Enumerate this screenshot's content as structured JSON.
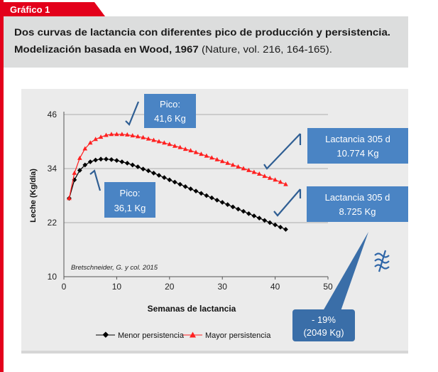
{
  "header": {
    "badge": "Gráfico 1",
    "title_line1": "Dos curvas de lactancia con diferentes pico de producción y persistencia.",
    "title_line2_bold": "Modelización basada en Wood, 1967",
    "title_line2_rest": " (Nature, vol. 216, 164-165)."
  },
  "colors": {
    "brand_red": "#e3001b",
    "header_bg": "#dcdddd",
    "callout_blue": "#4a84c4",
    "series_black": "#000000",
    "series_red": "#ff2020"
  },
  "icons": [
    "not-equal-approx-icon"
  ],
  "chart_data": {
    "type": "line",
    "xlabel": "Semanas de lactancia",
    "ylabel": "Leche (Kg/día)",
    "xlim": [
      0,
      50
    ],
    "ylim": [
      10,
      46
    ],
    "xticks": [
      0,
      10,
      20,
      30,
      40,
      50
    ],
    "yticks": [
      10,
      22,
      34,
      46
    ],
    "grid": "horizontal",
    "legend_position": "bottom",
    "source_note": "Bretschneider, G. y col. 2015",
    "x": [
      1,
      2,
      3,
      4,
      5,
      6,
      7,
      8,
      9,
      10,
      11,
      12,
      13,
      14,
      15,
      16,
      17,
      18,
      19,
      20,
      21,
      22,
      23,
      24,
      25,
      26,
      27,
      28,
      29,
      30,
      31,
      32,
      33,
      34,
      35,
      36,
      37,
      38,
      39,
      40,
      41,
      42
    ],
    "series": [
      {
        "name": "Menor persistencia",
        "color": "#000000",
        "marker": "diamond",
        "values": [
          27.4,
          31.5,
          33.6,
          34.8,
          35.5,
          35.9,
          36.1,
          36.1,
          36.0,
          35.8,
          35.5,
          35.2,
          34.8,
          34.4,
          33.9,
          33.5,
          33.0,
          32.5,
          32.0,
          31.5,
          31.0,
          30.5,
          30.0,
          29.5,
          29.0,
          28.5,
          28.0,
          27.5,
          27.0,
          26.5,
          26.0,
          25.5,
          25.0,
          24.5,
          24.0,
          23.5,
          23.0,
          22.5,
          22.0,
          21.5,
          21.0,
          20.5
        ]
      },
      {
        "name": "Mayor persistencia",
        "color": "#ff2020",
        "marker": "triangle",
        "values": [
          27.4,
          33.0,
          36.3,
          38.4,
          39.7,
          40.5,
          41.0,
          41.4,
          41.6,
          41.6,
          41.6,
          41.5,
          41.3,
          41.1,
          40.9,
          40.6,
          40.3,
          40.0,
          39.7,
          39.4,
          39.0,
          38.7,
          38.3,
          38.0,
          37.6,
          37.2,
          36.8,
          36.4,
          36.0,
          35.6,
          35.2,
          34.8,
          34.4,
          34.0,
          33.6,
          33.2,
          32.8,
          32.3,
          31.9,
          31.5,
          31.0,
          30.5
        ]
      }
    ],
    "annotations": {
      "pico_red": [
        "Pico:",
        "41,6 Kg"
      ],
      "pico_black": [
        "Pico:",
        "36,1 Kg"
      ],
      "lact_red": [
        "Lactancia 305 d",
        "10.774 Kg"
      ],
      "lact_black": [
        "Lactancia 305 d",
        "8.725 Kg"
      ],
      "diff": [
        "- 19%",
        "(2049 Kg)"
      ]
    }
  }
}
